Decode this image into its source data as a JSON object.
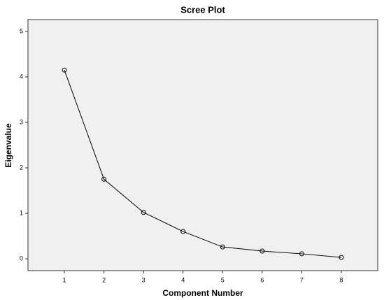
{
  "chart_data": {
    "type": "line",
    "title": "Scree Plot",
    "x_label": "Component Number",
    "y_label": "Eigenvalue",
    "x": [
      1,
      2,
      3,
      4,
      5,
      6,
      7,
      8
    ],
    "values": [
      4.15,
      1.75,
      1.02,
      0.6,
      0.26,
      0.17,
      0.11,
      0.03
    ],
    "color": "#000000",
    "background": "#f0f0f0",
    "xlim": [
      0.08,
      8.92
    ],
    "xticks": [
      1,
      2,
      3,
      4,
      5,
      6,
      7,
      8
    ],
    "ylim": [
      -0.26,
      5.26
    ],
    "yticks": [
      0,
      1,
      2,
      3,
      4,
      5
    ],
    "grid": false
  }
}
